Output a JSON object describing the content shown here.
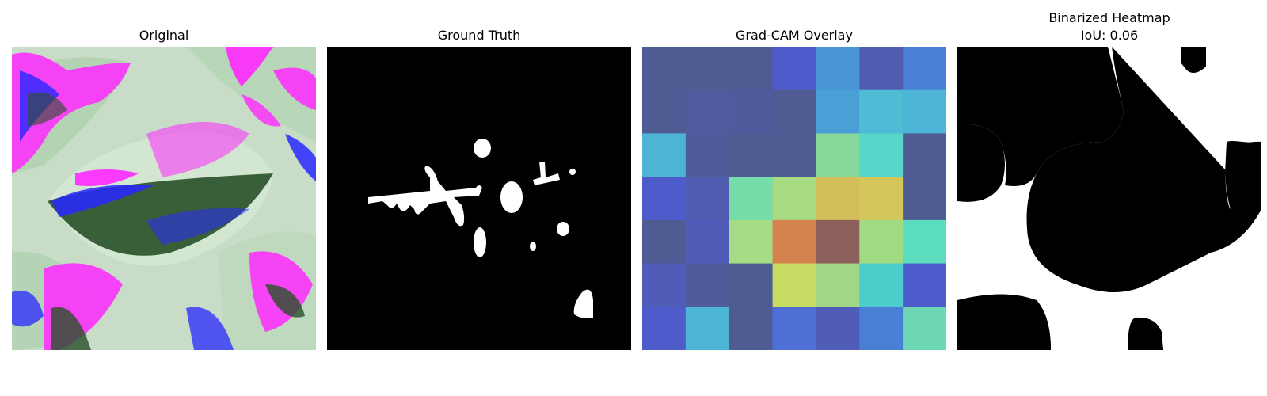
{
  "panels": {
    "original": {
      "title": "Original"
    },
    "ground_truth": {
      "title": "Ground Truth"
    },
    "gradcam": {
      "title": "Grad-CAM Overlay",
      "grid": [
        [
          "#4f5c94",
          "#4f5c94",
          "#4f5c94",
          "#4e5ccb",
          "#4a95d6",
          "#4f5cb0",
          "#4a7fd6"
        ],
        [
          "#4f5c94",
          "#4f5ca0",
          "#4f5c9c",
          "#4f5c94",
          "#4aa0d6",
          "#4dbcd4",
          "#4cb4d5"
        ],
        [
          "#4cb4d5",
          "#4f5c9c",
          "#4f5c94",
          "#4f5c94",
          "#86d99a",
          "#56d6c8",
          "#4f5c94"
        ],
        [
          "#4e5ccb",
          "#4f5cb0",
          "#76dca9",
          "#a7db83",
          "#d4be5a",
          "#d4c65a",
          "#4f5c94"
        ],
        [
          "#4f5c94",
          "#4f5cb8",
          "#a5dc86",
          "#d4834f",
          "#8c5f5c",
          "#a0db84",
          "#5cdcbe"
        ],
        [
          "#4f5cb8",
          "#4f5c9c",
          "#4f5c94",
          "#c8dc64",
          "#a0d886",
          "#4dcccc",
          "#4e5ccb"
        ],
        [
          "#4e5ccb",
          "#4cb4d5",
          "#4f5c94",
          "#4e6fd6",
          "#4f5cb8",
          "#4a7fd6",
          "#6ed8b4"
        ]
      ]
    },
    "binarized": {
      "title_line1": "Binarized Heatmap",
      "title_line2": "IoU: 0.06"
    }
  },
  "colors": {
    "background": "#ffffff",
    "mask_fg": "#ffffff",
    "mask_bg": "#000000",
    "orig_leaf": "#c8dcc8",
    "orig_magenta": "#ff28ff",
    "orig_blue": "#2828ff",
    "orig_dark": "#285028"
  }
}
